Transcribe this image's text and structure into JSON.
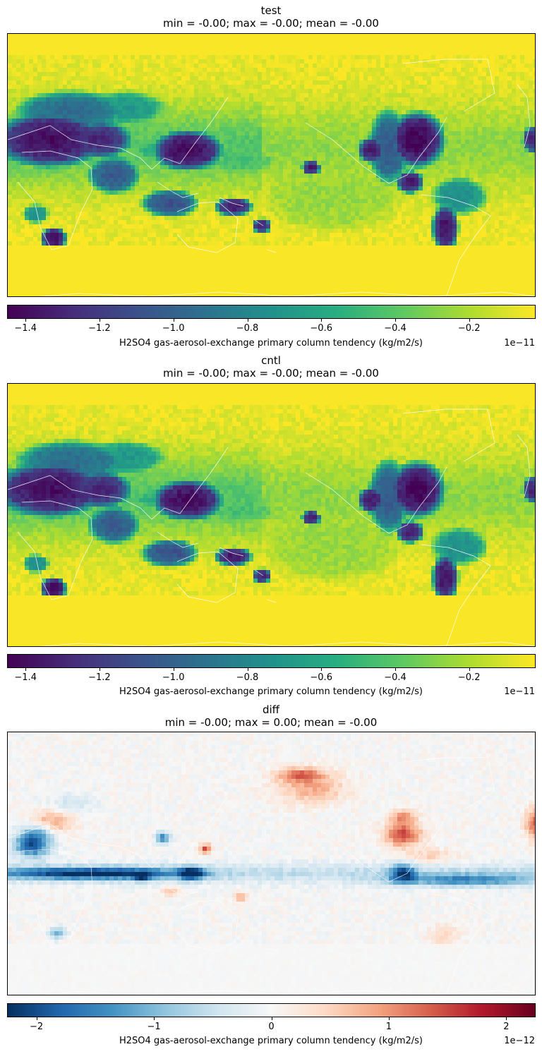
{
  "colors": {
    "viridis": [
      "#440154",
      "#472d7b",
      "#3b528b",
      "#2c728e",
      "#21918c",
      "#28ae80",
      "#5ec962",
      "#addc30",
      "#fde725"
    ],
    "rdbu_r": [
      "#053061",
      "#2166ac",
      "#4393c3",
      "#92c5de",
      "#d1e5f0",
      "#f7f7f7",
      "#fddbc7",
      "#f4a582",
      "#d6604d",
      "#b2182b",
      "#67001f"
    ],
    "coast": "#ffffff"
  },
  "chart_data": [
    {
      "type": "heatmap",
      "title": "test",
      "subtitle": "min = -0.00; max = -0.00; mean = -0.00",
      "colormap": "viridis",
      "clim": [
        -1.45,
        -0.02
      ],
      "colorbar": {
        "label": "H2SO4 gas-aerosol-exchange primary column tendency (kg/m2/s)",
        "exponent": "1e−11",
        "ticks": [
          -1.4,
          -1.2,
          -1.0,
          -0.8,
          -0.6,
          -0.4,
          -0.2
        ],
        "tick_labels": [
          "−1.4",
          "−1.2",
          "−1.0",
          "−0.8",
          "−0.6",
          "−0.4",
          "−0.2"
        ]
      }
    },
    {
      "type": "heatmap",
      "title": "cntl",
      "subtitle": "min = -0.00; max = -0.00; mean = -0.00",
      "colormap": "viridis",
      "clim": [
        -1.45,
        -0.02
      ],
      "colorbar": {
        "label": "H2SO4 gas-aerosol-exchange primary column tendency (kg/m2/s)",
        "exponent": "1e−11",
        "ticks": [
          -1.4,
          -1.2,
          -1.0,
          -0.8,
          -0.6,
          -0.4,
          -0.2
        ],
        "tick_labels": [
          "−1.4",
          "−1.2",
          "−1.0",
          "−0.8",
          "−0.6",
          "−0.4",
          "−0.2"
        ]
      }
    },
    {
      "type": "heatmap",
      "title": "diff",
      "subtitle": "min = -0.00; max = 0.00; mean = -0.00",
      "colormap": "RdBu_r",
      "clim": [
        -2.25,
        2.25
      ],
      "colorbar": {
        "label": "H2SO4 gas-aerosol-exchange primary column tendency (kg/m2/s)",
        "exponent": "1e−12",
        "ticks": [
          -2,
          -1,
          0,
          1,
          2
        ],
        "tick_labels": [
          "−2",
          "−1",
          "0",
          "1",
          "2"
        ]
      }
    }
  ]
}
